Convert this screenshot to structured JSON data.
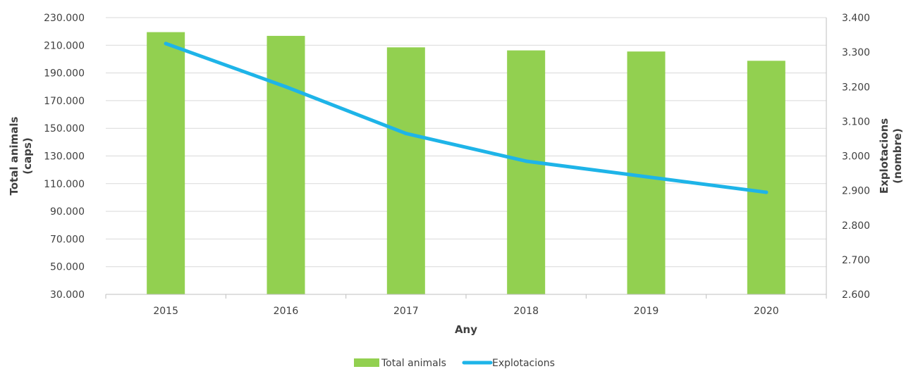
{
  "chart_data": {
    "type": "bar",
    "categories": [
      "2015",
      "2016",
      "2017",
      "2018",
      "2019",
      "2020"
    ],
    "series": [
      {
        "name": "Total animals",
        "type": "bar",
        "axis": "left",
        "values": [
          219500,
          216800,
          208500,
          206300,
          205500,
          198800
        ]
      },
      {
        "name": "Explotacions",
        "type": "line",
        "axis": "right",
        "values": [
          3325,
          3200,
          3065,
          2985,
          2940,
          2895
        ]
      }
    ],
    "title": "",
    "xlabel": "Any",
    "ylabel": "Total animals\n(caps)",
    "y2label": "Explotacions\n(nombre)",
    "ylim": [
      30000,
      230000
    ],
    "y2lim": [
      2600,
      3400
    ],
    "yticks": [
      "30.000",
      "50.000",
      "70.000",
      "90.000",
      "110.000",
      "130.000",
      "150.000",
      "170.000",
      "190.000",
      "210.000",
      "230.000"
    ],
    "y2ticks": [
      "2.600",
      "2.700",
      "2.800",
      "2.900",
      "3.000",
      "3.100",
      "3.200",
      "3.300",
      "3.400"
    ],
    "grid": true,
    "legend": "bottom-center",
    "colors": {
      "bars": "#92d050",
      "line": "#1eb4e8",
      "grid": "#d9d9d9",
      "axis": "#bfbfbf"
    }
  }
}
